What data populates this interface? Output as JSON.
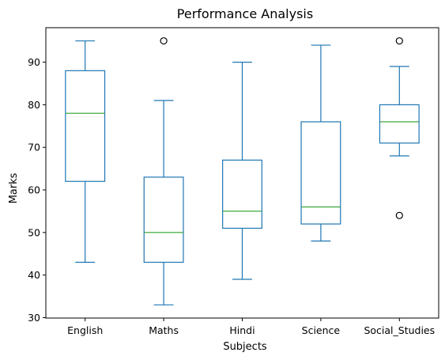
{
  "chart_data": {
    "type": "box",
    "title": "Performance Analysis",
    "xlabel": "Subjects",
    "ylabel": "Marks",
    "ylim": [
      29.9,
      98.1
    ],
    "yticks": [
      30,
      40,
      50,
      60,
      70,
      80,
      90
    ],
    "grid": false,
    "colors": {
      "box": "#1f77b4",
      "median": "#2ca02c",
      "outlier": "#000000"
    },
    "categories": [
      "English",
      "Maths",
      "Hindi",
      "Science",
      "Social_Studies"
    ],
    "boxes": [
      {
        "name": "English",
        "whisker_low": 43,
        "q1": 62,
        "median": 78,
        "q3": 88,
        "whisker_high": 95,
        "outliers": []
      },
      {
        "name": "Maths",
        "whisker_low": 33,
        "q1": 43,
        "median": 50,
        "q3": 63,
        "whisker_high": 81,
        "outliers": [
          95
        ]
      },
      {
        "name": "Hindi",
        "whisker_low": 39,
        "q1": 51,
        "median": 55,
        "q3": 67,
        "whisker_high": 90,
        "outliers": []
      },
      {
        "name": "Science",
        "whisker_low": 48,
        "q1": 52,
        "median": 56,
        "q3": 76,
        "whisker_high": 94,
        "outliers": []
      },
      {
        "name": "Social_Studies",
        "whisker_low": 68,
        "q1": 71,
        "median": 76,
        "q3": 80,
        "whisker_high": 89,
        "outliers": [
          95,
          54
        ]
      }
    ]
  }
}
